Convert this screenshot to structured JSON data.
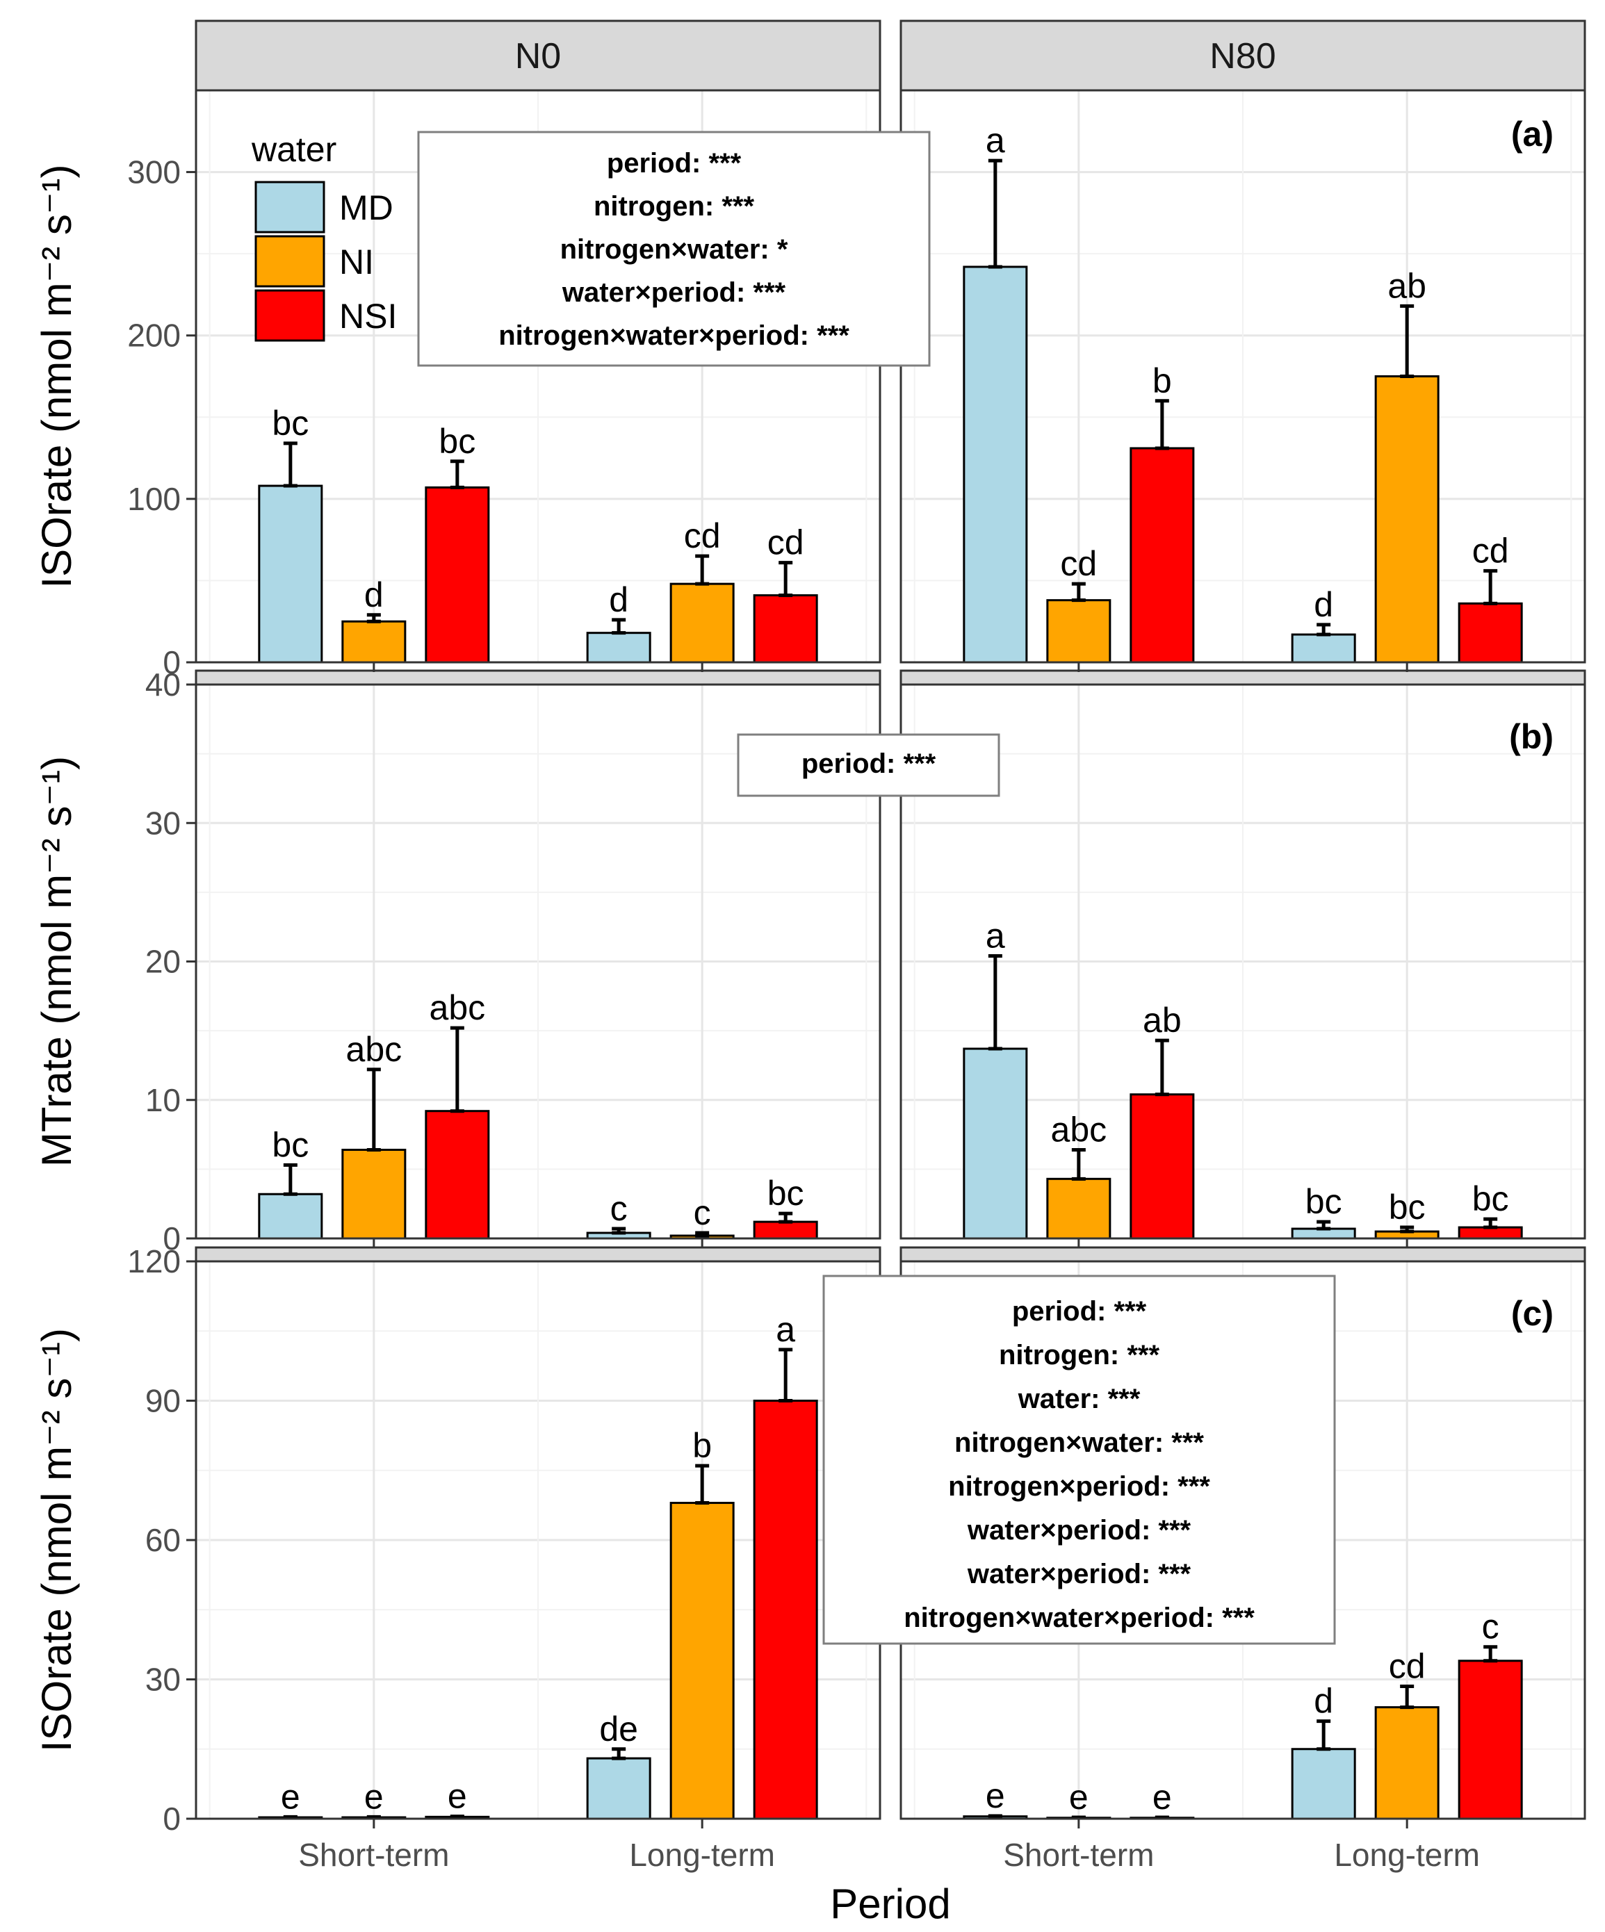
{
  "facets": [
    "N0",
    "N80"
  ],
  "legend": {
    "title": "water",
    "items": [
      {
        "label": "MD",
        "color": "#ADD8E6"
      },
      {
        "label": "NI",
        "color": "#FFA500"
      },
      {
        "label": "NSI",
        "color": "#FF0000"
      }
    ]
  },
  "xaxis": {
    "title": "Period",
    "categories": [
      "Short-term",
      "Long-term"
    ]
  },
  "chart_data": [
    {
      "type": "bar",
      "panel_label": "(a)",
      "ylabel": "ISOrate (nmol m⁻² s⁻¹)",
      "ylim": [
        0,
        350
      ],
      "yticks": [
        0,
        100,
        200,
        300
      ],
      "categories": [
        "Short-term",
        "Long-term"
      ],
      "stats": [
        "period:   ***",
        "nitrogen:  ***",
        "nitrogen×water: *",
        "water×period: ***",
        "nitrogen×water×period: ***"
      ],
      "facets": [
        {
          "name": "N0",
          "series": [
            {
              "name": "MD",
              "values": [
                108,
                18
              ],
              "errors": [
                26,
                8
              ],
              "letters": [
                "bc",
                "d"
              ]
            },
            {
              "name": "NI",
              "values": [
                25,
                48
              ],
              "errors": [
                4,
                17
              ],
              "letters": [
                "d",
                "cd"
              ]
            },
            {
              "name": "NSI",
              "values": [
                107,
                41
              ],
              "errors": [
                16,
                20
              ],
              "letters": [
                "bc",
                "cd"
              ]
            }
          ]
        },
        {
          "name": "N80",
          "series": [
            {
              "name": "MD",
              "values": [
                242,
                17
              ],
              "errors": [
                65,
                6
              ],
              "letters": [
                "a",
                "d"
              ]
            },
            {
              "name": "NI",
              "values": [
                38,
                175
              ],
              "errors": [
                10,
                43
              ],
              "letters": [
                "cd",
                "ab"
              ]
            },
            {
              "name": "NSI",
              "values": [
                131,
                36
              ],
              "errors": [
                29,
                20
              ],
              "letters": [
                "b",
                "cd"
              ]
            }
          ]
        }
      ]
    },
    {
      "type": "bar",
      "panel_label": "(b)",
      "ylabel": "MTrate (nmol m⁻² s⁻¹)",
      "ylim": [
        0,
        40
      ],
      "yticks": [
        0,
        10,
        20,
        30,
        40
      ],
      "categories": [
        "Short-term",
        "Long-term"
      ],
      "stats": [
        "period:   ***"
      ],
      "facets": [
        {
          "name": "N0",
          "series": [
            {
              "name": "MD",
              "values": [
                3.2,
                0.4
              ],
              "errors": [
                2.1,
                0.3
              ],
              "letters": [
                "bc",
                "c"
              ]
            },
            {
              "name": "NI",
              "values": [
                6.4,
                0.2
              ],
              "errors": [
                5.8,
                0.2
              ],
              "letters": [
                "abc",
                "c"
              ]
            },
            {
              "name": "NSI",
              "values": [
                9.2,
                1.2
              ],
              "errors": [
                6.0,
                0.6
              ],
              "letters": [
                "abc",
                "bc"
              ]
            }
          ]
        },
        {
          "name": "N80",
          "series": [
            {
              "name": "MD",
              "values": [
                13.7,
                0.7
              ],
              "errors": [
                6.7,
                0.5
              ],
              "letters": [
                "a",
                "bc"
              ]
            },
            {
              "name": "NI",
              "values": [
                4.3,
                0.5
              ],
              "errors": [
                2.1,
                0.3
              ],
              "letters": [
                "abc",
                "bc"
              ]
            },
            {
              "name": "NSI",
              "values": [
                10.4,
                0.8
              ],
              "errors": [
                3.9,
                0.6
              ],
              "letters": [
                "ab",
                "bc"
              ]
            }
          ]
        }
      ]
    },
    {
      "type": "bar",
      "panel_label": "(c)",
      "ylabel": "ISOrate (nmol m⁻² s⁻¹)",
      "ylim": [
        0,
        120
      ],
      "yticks": [
        0,
        30,
        60,
        90,
        120
      ],
      "categories": [
        "Short-term",
        "Long-term"
      ],
      "stats": [
        "period:   ***",
        "nitrogen:  ***",
        "water:  ***",
        "nitrogen×water: ***",
        "nitrogen×period: ***",
        "water×period: ***",
        "water×period: ***",
        "nitrogen×water×period: ***"
      ],
      "facets": [
        {
          "name": "N0",
          "series": [
            {
              "name": "MD",
              "values": [
                0.3,
                13
              ],
              "errors": [
                0.1,
                2
              ],
              "letters": [
                "e",
                "de"
              ]
            },
            {
              "name": "NI",
              "values": [
                0.3,
                68
              ],
              "errors": [
                0.1,
                8
              ],
              "letters": [
                "e",
                "b"
              ]
            },
            {
              "name": "NSI",
              "values": [
                0.4,
                90
              ],
              "errors": [
                0.1,
                11
              ],
              "letters": [
                "e",
                "a"
              ]
            }
          ]
        },
        {
          "name": "N80",
          "series": [
            {
              "name": "MD",
              "values": [
                0.5,
                15
              ],
              "errors": [
                0.1,
                6
              ],
              "letters": [
                "e",
                "d"
              ]
            },
            {
              "name": "NI",
              "values": [
                0.2,
                24
              ],
              "errors": [
                0.1,
                4.5
              ],
              "letters": [
                "e",
                "cd"
              ]
            },
            {
              "name": "NSI",
              "values": [
                0.2,
                34
              ],
              "errors": [
                0.1,
                3
              ],
              "letters": [
                "e",
                "c"
              ]
            }
          ]
        }
      ]
    }
  ]
}
